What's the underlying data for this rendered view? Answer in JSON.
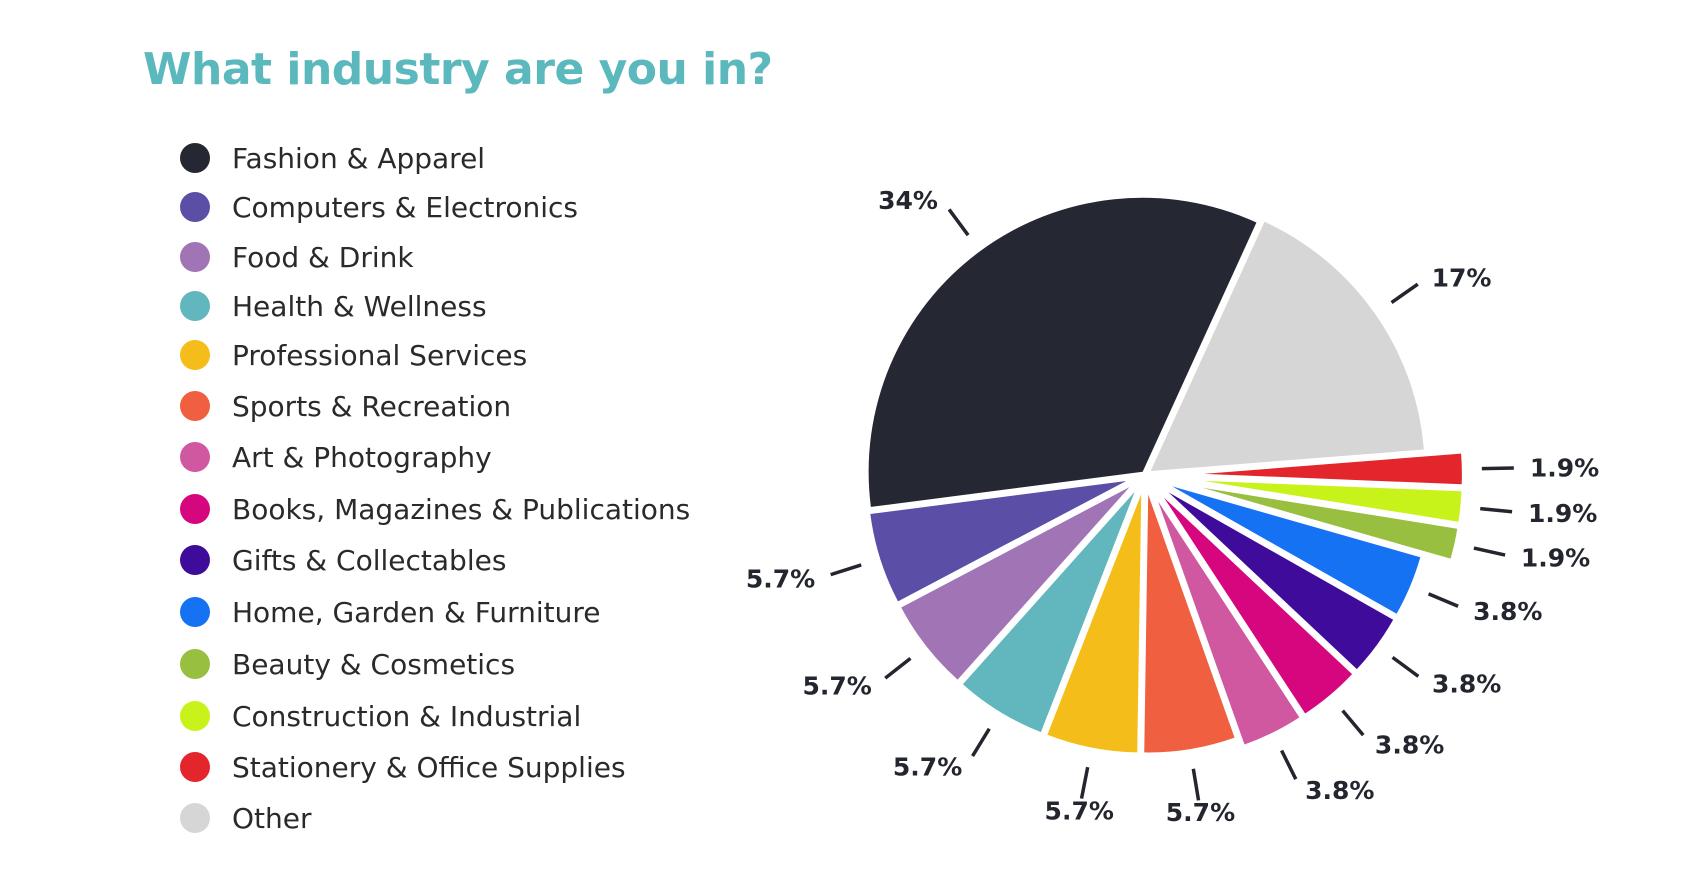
{
  "chart_data": {
    "type": "pie",
    "title": "What industry are you in?",
    "slices": [
      {
        "label": "Stationery & Office Supplies",
        "value": 1.9,
        "display": "1.9%",
        "color": "#e3262b"
      },
      {
        "label": "Construction & Industrial",
        "value": 1.9,
        "display": "1.9%",
        "color": "#c8f31a"
      },
      {
        "label": "Beauty & Cosmetics",
        "value": 1.9,
        "display": "1.9%",
        "color": "#98bf3f"
      },
      {
        "label": "Home, Garden & Furniture",
        "value": 3.8,
        "display": "3.8%",
        "color": "#1572f3"
      },
      {
        "label": "Gifts & Collectables",
        "value": 3.8,
        "display": "3.8%",
        "color": "#3f0b9a"
      },
      {
        "label": "Books, Magazines & Publications",
        "value": 3.8,
        "display": "3.8%",
        "color": "#d6067f"
      },
      {
        "label": "Art & Photography",
        "value": 3.8,
        "display": "3.8%",
        "color": "#cf58a1"
      },
      {
        "label": "Sports & Recreation",
        "value": 5.7,
        "display": "5.7%",
        "color": "#ef5f40"
      },
      {
        "label": "Professional Services",
        "value": 5.7,
        "display": "5.7%",
        "color": "#f4bd19"
      },
      {
        "label": "Health & Wellness",
        "value": 5.7,
        "display": "5.7%",
        "color": "#62b6bd"
      },
      {
        "label": "Food & Drink",
        "value": 5.7,
        "display": "5.7%",
        "color": "#a174b5"
      },
      {
        "label": "Computers & Electronics",
        "value": 5.7,
        "display": "5.7%",
        "color": "#5a4ea6"
      },
      {
        "label": "Fashion & Apparel",
        "value": 34,
        "display": "34%",
        "color": "#252833"
      },
      {
        "label": "Other",
        "value": 17,
        "display": "17%",
        "color": "#d6d6d6"
      }
    ],
    "legend_order": [
      "Fashion & Apparel",
      "Computers & Electronics",
      "Food & Drink",
      "Health & Wellness",
      "Professional Services",
      "Sports & Recreation",
      "Art & Photography",
      "Books, Magazines & Publications",
      "Gifts & Collectables",
      "Home, Garden & Furniture",
      "Beauty & Cosmetics",
      "Construction & Industrial",
      "Stationery & Office Supplies",
      "Other"
    ],
    "legend_position": "left"
  }
}
